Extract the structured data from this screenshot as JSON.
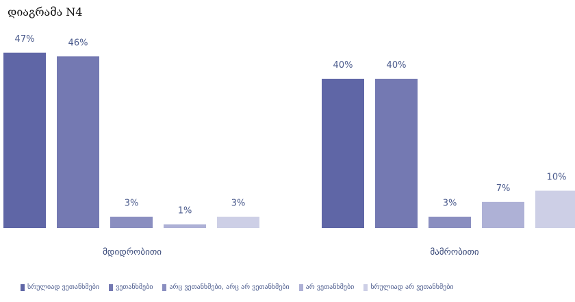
{
  "title": "დიაგრამა N4",
  "chart_data": {
    "type": "bar",
    "categories": [
      "მდიდრობითი",
      "მამრობითი"
    ],
    "series": [
      {
        "name": "სრულიად ვეთანხმები",
        "values": [
          47,
          40
        ],
        "labels": [
          "47%",
          "40%"
        ],
        "color": "#5f66a6"
      },
      {
        "name": "ვეთანხმები",
        "values": [
          46,
          40
        ],
        "labels": [
          "46%",
          "40%"
        ],
        "color": "#7479b2"
      },
      {
        "name": "არც ვეთანხმები, არც არ ვეთანხმები",
        "values": [
          3,
          3
        ],
        "labels": [
          "3%",
          "3%"
        ],
        "color": "#8a8ec0"
      },
      {
        "name": "არ ვეთანხმები",
        "values": [
          1,
          7
        ],
        "labels": [
          "1%",
          "7%"
        ],
        "color": "#aeb1d6"
      },
      {
        "name": "სრულიად არ ვეთანხმები",
        "values": [
          3,
          10
        ],
        "labels": [
          "3%",
          "10%"
        ],
        "color": "#cdcfe6"
      }
    ],
    "ylim": [
      0,
      50
    ],
    "grid": false,
    "legend": "bottom"
  }
}
